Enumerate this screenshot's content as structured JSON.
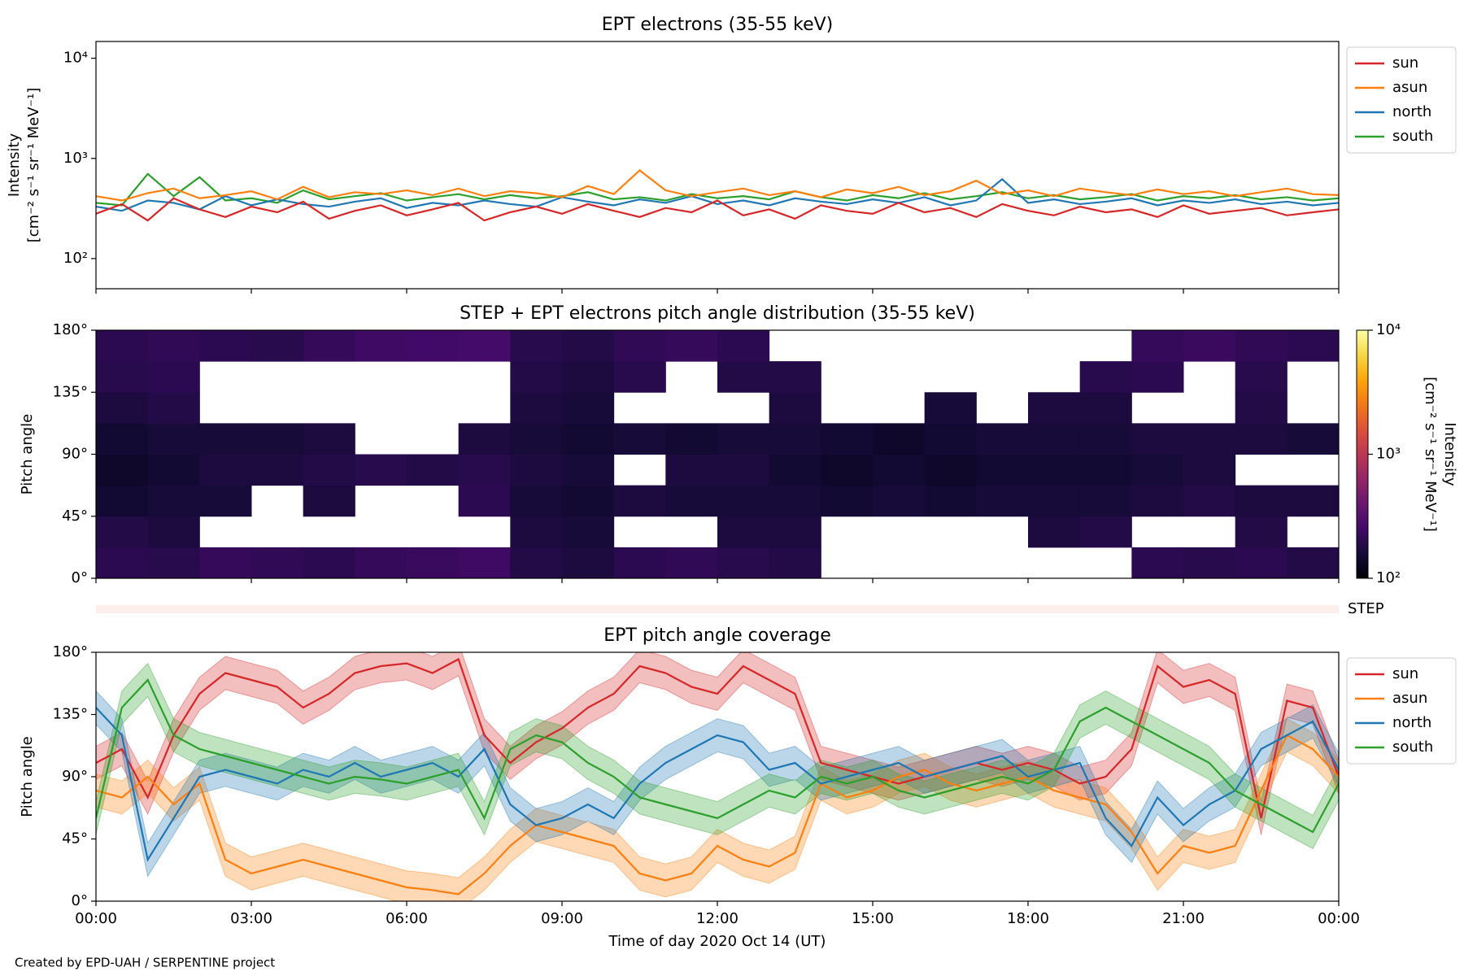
{
  "chart_data": [
    {
      "type": "line",
      "title": "EPT electrons (35-55 keV)",
      "ylabel": [
        "Intensity",
        "[cm⁻² s⁻¹ sr⁻¹ MeV⁻¹]"
      ],
      "log_y": true,
      "xlim": [
        0,
        24
      ],
      "ylim": [
        50,
        14700
      ],
      "yticks": [
        {
          "value": 100,
          "label": "10²"
        },
        {
          "value": 1000,
          "label": "10³"
        },
        {
          "value": 10000,
          "label": "10⁴"
        }
      ],
      "legend": "outside-right",
      "x": [
        0,
        0.5,
        1,
        1.5,
        2,
        2.5,
        3,
        3.5,
        4,
        4.5,
        5,
        5.5,
        6,
        6.5,
        7,
        7.5,
        8,
        8.5,
        9,
        9.5,
        10,
        10.5,
        11,
        11.5,
        12,
        12.5,
        13,
        13.5,
        14,
        14.5,
        15,
        15.5,
        16,
        16.5,
        17,
        17.5,
        18,
        18.5,
        19,
        19.5,
        20,
        20.5,
        21,
        21.5,
        22,
        22.5,
        23,
        23.5,
        24
      ],
      "series": [
        {
          "name": "sun",
          "color": "#d62728",
          "values": [
            280,
            350,
            240,
            400,
            310,
            260,
            330,
            290,
            370,
            250,
            300,
            340,
            270,
            310,
            360,
            240,
            290,
            330,
            280,
            350,
            300,
            260,
            320,
            290,
            380,
            270,
            310,
            250,
            340,
            300,
            280,
            360,
            290,
            320,
            260,
            350,
            300,
            270,
            330,
            290,
            310,
            260,
            340,
            280,
            300,
            320,
            270,
            290,
            310
          ]
        },
        {
          "name": "asun",
          "color": "#ff7f0e",
          "values": [
            420,
            380,
            450,
            500,
            400,
            430,
            470,
            390,
            520,
            410,
            460,
            440,
            480,
            430,
            500,
            420,
            470,
            450,
            410,
            530,
            440,
            760,
            480,
            420,
            460,
            500,
            430,
            470,
            410,
            490,
            450,
            520,
            430,
            470,
            600,
            440,
            480,
            420,
            500,
            460,
            430,
            490,
            440,
            470,
            420,
            460,
            500,
            440,
            430
          ]
        },
        {
          "name": "north",
          "color": "#1f77b4",
          "values": [
            330,
            300,
            380,
            360,
            310,
            420,
            340,
            390,
            350,
            330,
            370,
            400,
            320,
            360,
            340,
            380,
            350,
            330,
            410,
            370,
            340,
            390,
            360,
            420,
            350,
            380,
            340,
            400,
            370,
            350,
            390,
            360,
            410,
            340,
            380,
            620,
            360,
            390,
            350,
            370,
            400,
            340,
            380,
            360,
            390,
            350,
            370,
            340,
            360
          ]
        },
        {
          "name": "south",
          "color": "#2ca02c",
          "values": [
            360,
            340,
            700,
            420,
            650,
            380,
            400,
            360,
            480,
            390,
            420,
            450,
            380,
            410,
            440,
            390,
            430,
            400,
            420,
            460,
            390,
            410,
            380,
            440,
            400,
            420,
            390,
            470,
            410,
            380,
            430,
            400,
            450,
            390,
            420,
            460,
            400,
            430,
            390,
            410,
            440,
            380,
            420,
            400,
            430,
            390,
            410,
            380,
            400
          ]
        }
      ]
    },
    {
      "type": "heatmap",
      "title": "STEP + EPT electrons pitch angle distribution (35-55 keV)",
      "ylabel": "Pitch angle",
      "cmap": "inferno",
      "log_c": true,
      "xlim": [
        0,
        24
      ],
      "ylim": [
        0,
        180
      ],
      "yticks": [
        {
          "value": 0,
          "label": "0°"
        },
        {
          "value": 45,
          "label": "45°"
        },
        {
          "value": 90,
          "label": "90°"
        },
        {
          "value": 135,
          "label": "135°"
        },
        {
          "value": 180,
          "label": "180°"
        }
      ],
      "clim": [
        100,
        10000
      ],
      "cticks": [
        {
          "value": 100,
          "label": "10²"
        },
        {
          "value": 1000,
          "label": "10³"
        },
        {
          "value": 10000,
          "label": "10⁴"
        }
      ],
      "clabel": [
        "Intensity",
        "[cm⁻² s⁻¹ sr⁻¹ MeV⁻¹]"
      ],
      "strip_label": "STEP",
      "xbins": [
        0,
        1,
        2,
        3,
        4,
        5,
        6,
        7,
        8,
        9,
        10,
        11,
        12,
        13,
        14,
        15,
        16,
        17,
        18,
        19,
        20,
        21,
        22,
        23,
        24
      ],
      "ybins": [
        0,
        22.5,
        45,
        67.5,
        90,
        112.5,
        135,
        157.5,
        180
      ],
      "values": [
        [
          200,
          180,
          150,
          140,
          150,
          170,
          190,
          200
        ],
        [
          190,
          170,
          160,
          150,
          160,
          180,
          200,
          210
        ],
        [
          220,
          null,
          160,
          170,
          160,
          null,
          null,
          200
        ],
        [
          210,
          null,
          null,
          170,
          160,
          null,
          null,
          190
        ],
        [
          200,
          null,
          170,
          180,
          170,
          null,
          null,
          220
        ],
        [
          220,
          null,
          null,
          190,
          null,
          null,
          null,
          240
        ],
        [
          230,
          null,
          null,
          180,
          null,
          null,
          null,
          250
        ],
        [
          240,
          null,
          200,
          190,
          170,
          null,
          null,
          260
        ],
        [
          180,
          170,
          160,
          170,
          160,
          170,
          180,
          190
        ],
        [
          170,
          160,
          150,
          160,
          150,
          160,
          170,
          180
        ],
        [
          200,
          null,
          170,
          null,
          160,
          null,
          190,
          210
        ],
        [
          210,
          null,
          160,
          170,
          150,
          null,
          null,
          220
        ],
        [
          190,
          170,
          160,
          170,
          160,
          null,
          180,
          200
        ],
        [
          180,
          170,
          160,
          150,
          160,
          170,
          180,
          null
        ],
        [
          null,
          null,
          150,
          140,
          150,
          null,
          null,
          null
        ],
        [
          null,
          null,
          160,
          150,
          140,
          null,
          null,
          null
        ],
        [
          null,
          null,
          150,
          140,
          150,
          160,
          null,
          null
        ],
        [
          null,
          null,
          160,
          150,
          160,
          null,
          null,
          null
        ],
        [
          null,
          170,
          160,
          150,
          160,
          170,
          null,
          null
        ],
        [
          null,
          180,
          160,
          150,
          160,
          170,
          190,
          null
        ],
        [
          200,
          null,
          170,
          160,
          170,
          null,
          200,
          220
        ],
        [
          190,
          null,
          180,
          170,
          170,
          null,
          null,
          230
        ],
        [
          200,
          180,
          170,
          null,
          170,
          180,
          190,
          210
        ],
        [
          180,
          null,
          170,
          null,
          160,
          null,
          null,
          200
        ]
      ]
    },
    {
      "type": "line",
      "title": "EPT pitch angle coverage",
      "ylabel": "Pitch angle",
      "xlabel": "Time of day 2020 Oct 14 (UT)",
      "xlim": [
        0,
        24
      ],
      "ylim": [
        0,
        180
      ],
      "yticks": [
        {
          "value": 0,
          "label": "0°"
        },
        {
          "value": 45,
          "label": "45°"
        },
        {
          "value": 90,
          "label": "90°"
        },
        {
          "value": 135,
          "label": "135°"
        },
        {
          "value": 180,
          "label": "180°"
        }
      ],
      "xticks": [
        {
          "value": 0,
          "label": "00:00"
        },
        {
          "value": 3,
          "label": "03:00"
        },
        {
          "value": 6,
          "label": "06:00"
        },
        {
          "value": 9,
          "label": "09:00"
        },
        {
          "value": 12,
          "label": "12:00"
        },
        {
          "value": 15,
          "label": "15:00"
        },
        {
          "value": 18,
          "label": "18:00"
        },
        {
          "value": 21,
          "label": "21:00"
        },
        {
          "value": 24,
          "label": "00:00"
        }
      ],
      "legend": "outside-right",
      "x": [
        0,
        0.5,
        1,
        1.5,
        2,
        2.5,
        3,
        3.5,
        4,
        4.5,
        5,
        5.5,
        6,
        6.5,
        7,
        7.5,
        8,
        8.5,
        9,
        9.5,
        10,
        10.5,
        11,
        11.5,
        12,
        12.5,
        13,
        13.5,
        14,
        14.5,
        15,
        15.5,
        16,
        16.5,
        17,
        17.5,
        18,
        18.5,
        19,
        19.5,
        20,
        20.5,
        21,
        21.5,
        22,
        22.5,
        23,
        23.5,
        24
      ],
      "series": [
        {
          "name": "sun",
          "color": "#d62728",
          "spread": 12,
          "values": [
            100,
            110,
            75,
            120,
            150,
            165,
            160,
            155,
            140,
            150,
            165,
            170,
            172,
            165,
            175,
            120,
            100,
            115,
            125,
            140,
            150,
            170,
            165,
            155,
            150,
            170,
            160,
            150,
            100,
            95,
            90,
            85,
            90,
            95,
            100,
            95,
            100,
            95,
            85,
            90,
            110,
            170,
            155,
            160,
            150,
            60,
            145,
            140,
            90
          ]
        },
        {
          "name": "asun",
          "color": "#ff7f0e",
          "spread": 12,
          "values": [
            80,
            75,
            90,
            70,
            85,
            30,
            20,
            25,
            30,
            25,
            20,
            15,
            10,
            8,
            5,
            20,
            40,
            55,
            50,
            45,
            40,
            20,
            15,
            20,
            40,
            30,
            25,
            35,
            85,
            75,
            80,
            90,
            95,
            85,
            80,
            85,
            90,
            80,
            75,
            70,
            50,
            20,
            40,
            35,
            40,
            80,
            120,
            110,
            90
          ]
        },
        {
          "name": "north",
          "color": "#1f77b4",
          "spread": 12,
          "values": [
            140,
            120,
            30,
            60,
            90,
            95,
            90,
            85,
            95,
            90,
            100,
            90,
            95,
            100,
            90,
            110,
            70,
            55,
            60,
            70,
            60,
            85,
            100,
            110,
            120,
            115,
            95,
            100,
            85,
            90,
            95,
            100,
            90,
            95,
            100,
            105,
            90,
            95,
            100,
            60,
            40,
            75,
            55,
            70,
            80,
            110,
            120,
            130,
            95
          ]
        },
        {
          "name": "south",
          "color": "#2ca02c",
          "spread": 12,
          "values": [
            60,
            140,
            160,
            120,
            110,
            105,
            100,
            95,
            90,
            85,
            90,
            88,
            85,
            90,
            95,
            60,
            110,
            120,
            115,
            100,
            90,
            75,
            70,
            65,
            60,
            70,
            80,
            75,
            90,
            85,
            90,
            80,
            75,
            80,
            85,
            90,
            85,
            95,
            130,
            140,
            130,
            120,
            110,
            100,
            80,
            70,
            60,
            50,
            85
          ]
        }
      ]
    }
  ],
  "footer": "Created by EPD-UAH / SERPENTINE project"
}
